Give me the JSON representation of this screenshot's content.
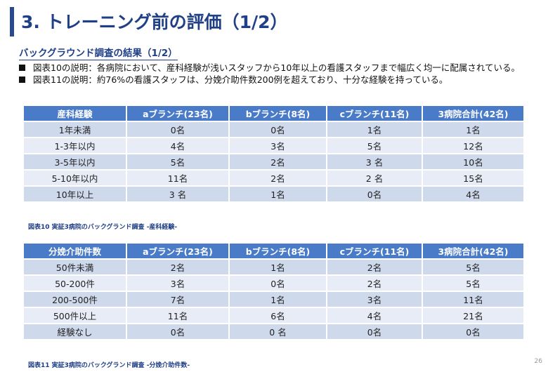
{
  "title": "3. トレーニング前の評価（1/2）",
  "subtitle": "バックグラウンド調査の結果（1/2）",
  "bullets": [
    "図表10の説明：各病院において、産科経験が浅いスタッフから10年以上の看護スタッフまで幅広く均一に配属されている。",
    "図表11の説明：約76%の看護スタッフは、分娩介助件数200例を超えており、十分な経験を持っている。"
  ],
  "table1": {
    "headers": [
      "産科経験",
      "aブランチ(23名)",
      "bブランチ(8名)",
      "cブランチ(11名)",
      "3病院合計(42名)"
    ],
    "rows": [
      [
        "1年未満",
        "0名",
        "0名",
        "1名",
        "1名"
      ],
      [
        "1-3年以内",
        "4名",
        "3名",
        "5名",
        "12名"
      ],
      [
        "3-5年以内",
        "5名",
        "2名",
        "3 名",
        "10名"
      ],
      [
        "5-10年以内",
        "11名",
        "2名",
        "2 名",
        "15名"
      ],
      [
        "10年以上",
        "3 名",
        "1名",
        "0名",
        "4名"
      ]
    ],
    "caption": "図表10 実証3病院のバックグランド調査 -産科経験-"
  },
  "table2": {
    "headers": [
      "分娩介助件数",
      "aブランチ(23名)",
      "bブランチ(8名)",
      "cブランチ(11名)",
      "3病院合計(42名)"
    ],
    "rows": [
      [
        "50件未満",
        "2名",
        "1名",
        "2名",
        "5名"
      ],
      [
        "50-200件",
        "3名",
        "0名",
        "2名",
        "5名"
      ],
      [
        "200-500件",
        "7名",
        "1名",
        "3名",
        "11名"
      ],
      [
        "500件以上",
        "11名",
        "6名",
        "4名",
        "21名"
      ],
      [
        "経験なし",
        "0名",
        "0 名",
        "0名",
        "0名"
      ]
    ],
    "caption": "図表11 実証3病院のバックグランド調査 -分娩介助件数-"
  },
  "page_number": "26"
}
